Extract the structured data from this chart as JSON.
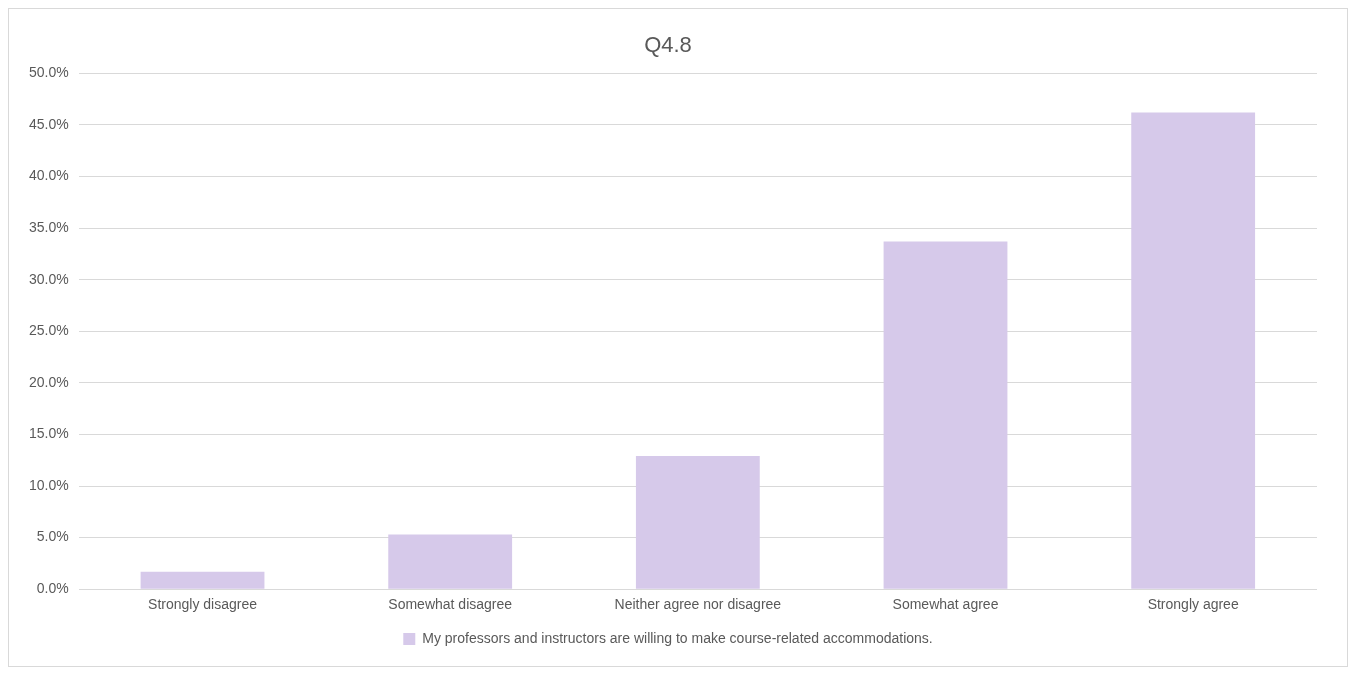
{
  "chart_data": {
    "type": "bar",
    "title": "Q4.8",
    "categories": [
      "Strongly disagree",
      "Somewhat disagree",
      "Neither agree nor disagree",
      "Somewhat agree",
      "Strongly agree"
    ],
    "series": [
      {
        "name": "My professors and instructors are willing to make course-related accommodations.",
        "color": "#d6c9ea",
        "values": [
          1.7,
          5.3,
          12.9,
          33.7,
          46.2
        ]
      }
    ],
    "ylim": [
      0,
      50
    ],
    "yticks": [
      {
        "value": 0,
        "label": "0.0%"
      },
      {
        "value": 5,
        "label": "5.0%"
      },
      {
        "value": 10,
        "label": "10.0%"
      },
      {
        "value": 15,
        "label": "15.0%"
      },
      {
        "value": 20,
        "label": "20.0%"
      },
      {
        "value": 25,
        "label": "25.0%"
      },
      {
        "value": 30,
        "label": "30.0%"
      },
      {
        "value": 35,
        "label": "35.0%"
      },
      {
        "value": 40,
        "label": "40.0%"
      },
      {
        "value": 45,
        "label": "45.0%"
      },
      {
        "value": 50,
        "label": "50.0%"
      }
    ],
    "grid": "y",
    "legend": "bottom"
  }
}
